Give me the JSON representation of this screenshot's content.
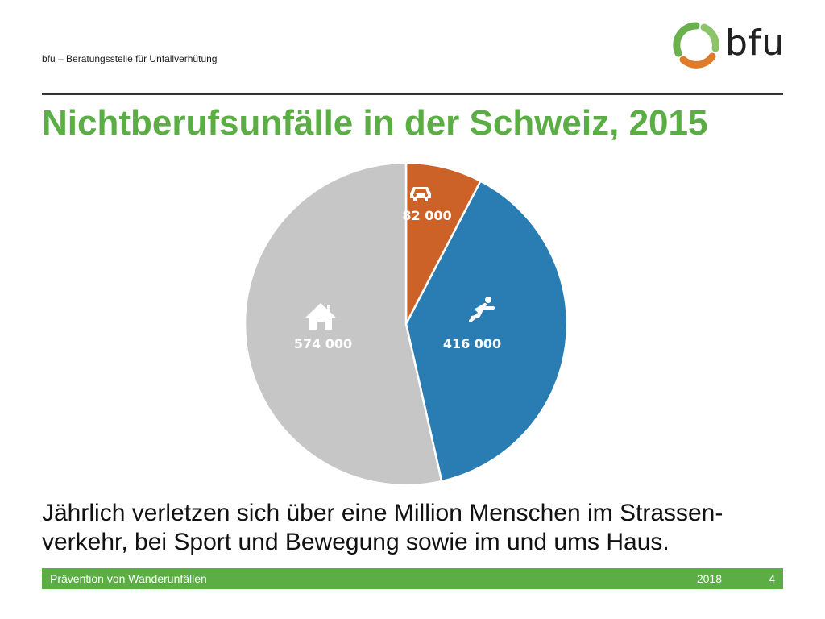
{
  "header": {
    "org_text": "bfu – Beratungsstelle für Unfallverhütung",
    "logo_text": "bfu"
  },
  "title": "Nichtberufsunfälle in der Schweiz, 2015",
  "chart_data": {
    "type": "pie",
    "start_angle_deg": 0,
    "direction": "clockwise",
    "series": [
      {
        "label": "82 000",
        "value": 82000,
        "icon": "car-icon",
        "color": "#cc6228"
      },
      {
        "label": "416 000",
        "value": 416000,
        "icon": "runner-icon",
        "color": "#2a7db3"
      },
      {
        "label": "574 000",
        "value": 574000,
        "icon": "house-icon",
        "color": "#c6c6c6"
      }
    ],
    "slice_separator_color": "#ffffff"
  },
  "body_text": "Jährlich verletzen sich über eine Million Menschen im Strassen-verkehr, bei Sport und Bewegung sowie im und ums Haus.",
  "footer": {
    "left_text": "Prävention von Wanderunfällen",
    "year": "2018",
    "page_number": "4"
  },
  "colors": {
    "accent_green": "#5aae44",
    "logo_green": "#6ab04c",
    "logo_orange": "#e07b2a"
  }
}
